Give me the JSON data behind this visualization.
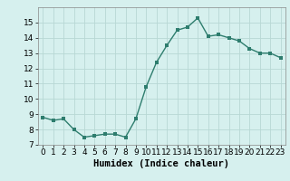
{
  "x": [
    0,
    1,
    2,
    3,
    4,
    5,
    6,
    7,
    8,
    9,
    10,
    11,
    12,
    13,
    14,
    15,
    16,
    17,
    18,
    19,
    20,
    21,
    22,
    23
  ],
  "y": [
    8.8,
    8.6,
    8.7,
    8.0,
    7.5,
    7.6,
    7.7,
    7.7,
    7.5,
    8.7,
    10.8,
    12.4,
    13.5,
    14.5,
    14.7,
    15.3,
    14.1,
    14.2,
    14.0,
    13.8,
    13.3,
    13.0,
    13.0,
    12.7
  ],
  "xlabel": "Humidex (Indice chaleur)",
  "ylabel": "",
  "xlim": [
    -0.5,
    23.5
  ],
  "ylim": [
    7,
    16.0
  ],
  "yticks": [
    7,
    8,
    9,
    10,
    11,
    12,
    13,
    14,
    15
  ],
  "xticks": [
    0,
    1,
    2,
    3,
    4,
    5,
    6,
    7,
    8,
    9,
    10,
    11,
    12,
    13,
    14,
    15,
    16,
    17,
    18,
    19,
    20,
    21,
    22,
    23
  ],
  "line_color": "#2e7d6e",
  "marker": "s",
  "marker_size": 2.5,
  "bg_color": "#d6f0ee",
  "grid_color": "#b8d8d4",
  "tick_fontsize": 6.5,
  "label_fontsize": 7.5
}
